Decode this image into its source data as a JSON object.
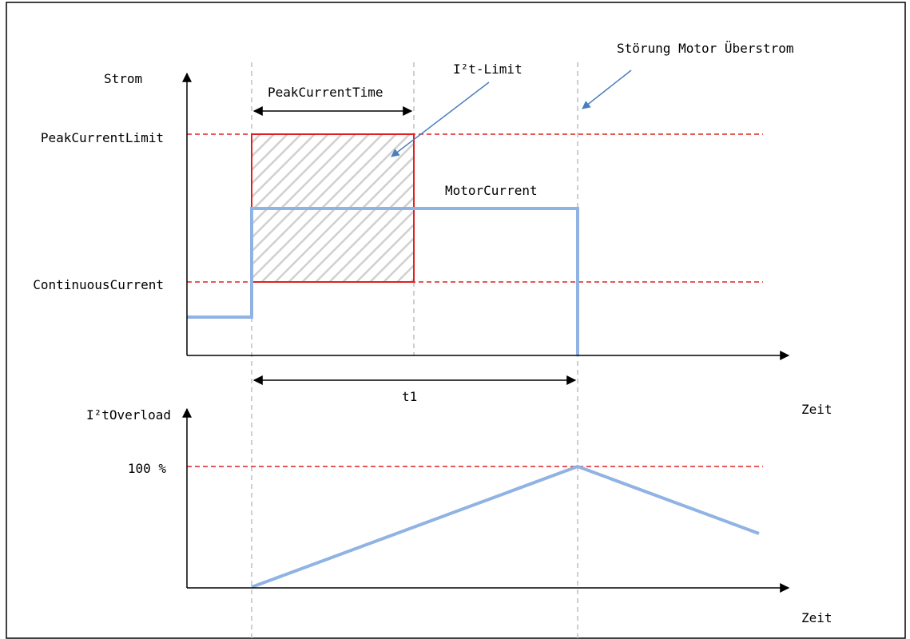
{
  "labels": {
    "y_axis_top": "Strom",
    "y_axis_bottom": "I²tOverload",
    "x_axis_top": "Zeit",
    "x_axis_bottom": "Zeit",
    "peak_current_limit": "PeakCurrentLimit",
    "continuous_current": "ContinuousCurrent",
    "peak_current_time": "PeakCurrentTime",
    "i2t_limit": "I²t-Limit",
    "fault": "Störung Motor Überstrom",
    "motor_current": "MotorCurrent",
    "t1": "t1",
    "overload_100": "100 %"
  },
  "colors": {
    "frame": "#000000",
    "axis": "#000000",
    "limit_dashed": "#e02020",
    "peak_box": "#e02020",
    "hatch": "#d0d0d0",
    "signal": "#8fb3e3",
    "callout_arrow": "#4a7ebf",
    "guide": "#bdbdbd"
  }
}
